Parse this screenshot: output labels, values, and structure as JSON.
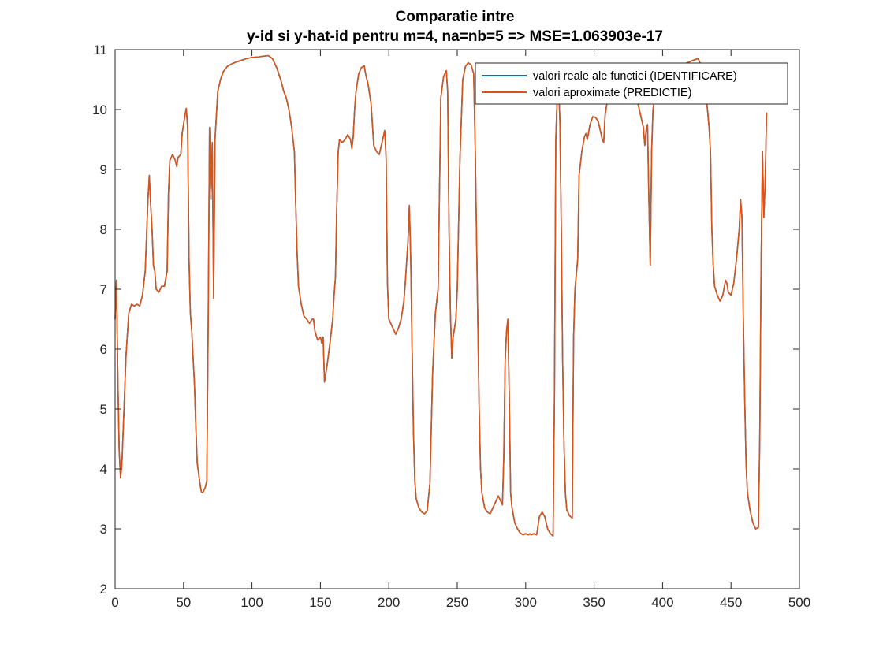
{
  "chart_data": {
    "type": "line",
    "title": [
      "Comparatie intre",
      "y-id si y-hat-id pentru m=4, na=nb=5 => MSE=1.063903e-17"
    ],
    "xlabel": "",
    "ylabel": "",
    "xlim": [
      0,
      500
    ],
    "ylim": [
      2,
      11
    ],
    "x_ticks": [
      0,
      50,
      100,
      150,
      200,
      250,
      300,
      350,
      400,
      450,
      500
    ],
    "y_ticks": [
      2,
      3,
      4,
      5,
      6,
      7,
      8,
      9,
      10,
      11
    ],
    "grid": false,
    "legend_position": "top-right",
    "series": [
      {
        "name": "valori reale ale functiei (IDENTIFICARE)",
        "color": "#0072bd",
        "points": [
          [
            0,
            6.5
          ],
          [
            1,
            7.15
          ],
          [
            2,
            5.5
          ],
          [
            3,
            4.3
          ],
          [
            4,
            3.85
          ],
          [
            5,
            4.1
          ],
          [
            6,
            4.7
          ],
          [
            8,
            5.9
          ],
          [
            10,
            6.6
          ],
          [
            12,
            6.75
          ],
          [
            14,
            6.72
          ],
          [
            16,
            6.75
          ],
          [
            18,
            6.72
          ],
          [
            20,
            6.9
          ],
          [
            22,
            7.3
          ],
          [
            23,
            7.9
          ],
          [
            24,
            8.5
          ],
          [
            25,
            8.9
          ],
          [
            26,
            8.4
          ],
          [
            27,
            8.0
          ],
          [
            28,
            7.4
          ],
          [
            29,
            7.3
          ],
          [
            30,
            7.0
          ],
          [
            32,
            6.95
          ],
          [
            34,
            7.05
          ],
          [
            36,
            7.05
          ],
          [
            38,
            7.3
          ],
          [
            39,
            8.6
          ],
          [
            40,
            9.15
          ],
          [
            42,
            9.25
          ],
          [
            44,
            9.15
          ],
          [
            45,
            9.05
          ],
          [
            46,
            9.2
          ],
          [
            48,
            9.25
          ],
          [
            49,
            9.6
          ],
          [
            51,
            9.9
          ],
          [
            52,
            10.02
          ],
          [
            53,
            9.7
          ],
          [
            54,
            7.5
          ],
          [
            55,
            6.6
          ],
          [
            56,
            6.3
          ],
          [
            58,
            5.4
          ],
          [
            59,
            4.7
          ],
          [
            60,
            4.1
          ],
          [
            62,
            3.75
          ],
          [
            63,
            3.62
          ],
          [
            64,
            3.6
          ],
          [
            66,
            3.7
          ],
          [
            67,
            3.8
          ],
          [
            68,
            6.4
          ],
          [
            69,
            9.7
          ],
          [
            70,
            8.5
          ],
          [
            71,
            9.45
          ],
          [
            72,
            6.85
          ],
          [
            73,
            9.5
          ],
          [
            75,
            10.3
          ],
          [
            77,
            10.5
          ],
          [
            79,
            10.63
          ],
          [
            82,
            10.72
          ],
          [
            85,
            10.76
          ],
          [
            88,
            10.79
          ],
          [
            92,
            10.82
          ],
          [
            96,
            10.85
          ],
          [
            100,
            10.87
          ],
          [
            105,
            10.88
          ],
          [
            108,
            10.89
          ],
          [
            112,
            10.9
          ],
          [
            115,
            10.85
          ],
          [
            118,
            10.7
          ],
          [
            121,
            10.5
          ],
          [
            123,
            10.32
          ],
          [
            125,
            10.2
          ],
          [
            127,
            10.0
          ],
          [
            129,
            9.7
          ],
          [
            131,
            9.3
          ],
          [
            132,
            8.4
          ],
          [
            133,
            7.6
          ],
          [
            134,
            7.05
          ],
          [
            136,
            6.75
          ],
          [
            138,
            6.55
          ],
          [
            140,
            6.5
          ],
          [
            142,
            6.43
          ],
          [
            144,
            6.5
          ],
          [
            145,
            6.5
          ],
          [
            146,
            6.3
          ],
          [
            148,
            6.15
          ],
          [
            150,
            6.2
          ],
          [
            151,
            6.1
          ],
          [
            152,
            6.2
          ],
          [
            153,
            5.45
          ],
          [
            155,
            5.75
          ],
          [
            157,
            6.1
          ],
          [
            159,
            6.5
          ],
          [
            160,
            6.9
          ],
          [
            161,
            7.2
          ],
          [
            162,
            8.4
          ],
          [
            163,
            9.3
          ],
          [
            164,
            9.5
          ],
          [
            166,
            9.45
          ],
          [
            168,
            9.5
          ],
          [
            170,
            9.58
          ],
          [
            172,
            9.5
          ],
          [
            173,
            9.35
          ],
          [
            174,
            9.55
          ],
          [
            175,
            10.0
          ],
          [
            176,
            10.3
          ],
          [
            178,
            10.6
          ],
          [
            180,
            10.7
          ],
          [
            182,
            10.73
          ],
          [
            183,
            10.6
          ],
          [
            185,
            10.4
          ],
          [
            187,
            10.1
          ],
          [
            189,
            9.4
          ],
          [
            191,
            9.3
          ],
          [
            193,
            9.25
          ],
          [
            195,
            9.45
          ],
          [
            197,
            9.65
          ],
          [
            198,
            9.2
          ],
          [
            199,
            7.1
          ],
          [
            200,
            6.5
          ],
          [
            202,
            6.4
          ],
          [
            204,
            6.3
          ],
          [
            205,
            6.25
          ],
          [
            207,
            6.35
          ],
          [
            209,
            6.5
          ],
          [
            211,
            6.8
          ],
          [
            212,
            7.1
          ],
          [
            214,
            7.8
          ],
          [
            215,
            8.4
          ],
          [
            216,
            7.5
          ],
          [
            217,
            6.0
          ],
          [
            218,
            4.6
          ],
          [
            219,
            3.8
          ],
          [
            220,
            3.5
          ],
          [
            222,
            3.35
          ],
          [
            224,
            3.28
          ],
          [
            226,
            3.25
          ],
          [
            228,
            3.3
          ],
          [
            230,
            3.75
          ],
          [
            232,
            5.6
          ],
          [
            234,
            6.6
          ],
          [
            236,
            7.0
          ],
          [
            238,
            10.2
          ],
          [
            240,
            10.55
          ],
          [
            242,
            10.65
          ],
          [
            243,
            10.3
          ],
          [
            244,
            8.0
          ],
          [
            245,
            6.6
          ],
          [
            246,
            5.85
          ],
          [
            247,
            6.2
          ],
          [
            249,
            6.5
          ],
          [
            250,
            7.0
          ],
          [
            252,
            9.2
          ],
          [
            254,
            10.5
          ],
          [
            256,
            10.72
          ],
          [
            258,
            10.78
          ],
          [
            260,
            10.75
          ],
          [
            262,
            10.6
          ],
          [
            263,
            9.5
          ],
          [
            265,
            6.5
          ],
          [
            266,
            5.0
          ],
          [
            267,
            4.0
          ],
          [
            268,
            3.6
          ],
          [
            270,
            3.35
          ],
          [
            272,
            3.28
          ],
          [
            274,
            3.25
          ],
          [
            276,
            3.35
          ],
          [
            278,
            3.45
          ],
          [
            280,
            3.55
          ],
          [
            281,
            3.5
          ],
          [
            282,
            3.45
          ],
          [
            283,
            3.4
          ],
          [
            284,
            4.2
          ],
          [
            285,
            5.8
          ],
          [
            286,
            6.3
          ],
          [
            287,
            6.5
          ],
          [
            288,
            5.2
          ],
          [
            289,
            3.6
          ],
          [
            290,
            3.35
          ],
          [
            292,
            3.1
          ],
          [
            294,
            3.0
          ],
          [
            296,
            2.93
          ],
          [
            298,
            2.9
          ],
          [
            300,
            2.92
          ],
          [
            302,
            2.9
          ],
          [
            303,
            2.92
          ],
          [
            304,
            2.9
          ],
          [
            306,
            2.92
          ],
          [
            308,
            2.9
          ],
          [
            310,
            3.2
          ],
          [
            312,
            3.28
          ],
          [
            314,
            3.2
          ],
          [
            316,
            3.0
          ],
          [
            318,
            2.92
          ],
          [
            320,
            2.88
          ],
          [
            321,
            5.2
          ],
          [
            322,
            9.5
          ],
          [
            323,
            10.2
          ],
          [
            324,
            10.45
          ],
          [
            325,
            9.8
          ],
          [
            326,
            8.0
          ],
          [
            327,
            5.8
          ],
          [
            328,
            4.4
          ],
          [
            329,
            3.6
          ],
          [
            330,
            3.32
          ],
          [
            332,
            3.22
          ],
          [
            334,
            3.18
          ],
          [
            335,
            6.2
          ],
          [
            336,
            7.0
          ],
          [
            338,
            7.5
          ],
          [
            339,
            8.9
          ],
          [
            341,
            9.3
          ],
          [
            343,
            9.55
          ],
          [
            344,
            9.6
          ],
          [
            345,
            9.5
          ],
          [
            347,
            9.75
          ],
          [
            349,
            9.88
          ],
          [
            351,
            9.87
          ],
          [
            353,
            9.8
          ],
          [
            355,
            9.6
          ],
          [
            356,
            9.5
          ],
          [
            357,
            9.45
          ],
          [
            358,
            9.9
          ],
          [
            359,
            10.05
          ],
          [
            361,
            10.3
          ],
          [
            363,
            10.45
          ],
          [
            365,
            10.55
          ],
          [
            367,
            10.6
          ],
          [
            370,
            10.55
          ],
          [
            374,
            10.45
          ],
          [
            377,
            10.3
          ],
          [
            380,
            10.2
          ],
          [
            382,
            10.1
          ],
          [
            384,
            9.9
          ],
          [
            386,
            9.7
          ],
          [
            387,
            9.4
          ],
          [
            388,
            9.65
          ],
          [
            389,
            9.75
          ],
          [
            390,
            8.5
          ],
          [
            391,
            7.4
          ],
          [
            392,
            9.3
          ],
          [
            393,
            10.0
          ],
          [
            395,
            10.3
          ],
          [
            397,
            10.45
          ],
          [
            400,
            10.55
          ],
          [
            403,
            10.6
          ],
          [
            406,
            10.65
          ],
          [
            410,
            10.7
          ],
          [
            414,
            10.75
          ],
          [
            418,
            10.78
          ],
          [
            422,
            10.82
          ],
          [
            426,
            10.85
          ],
          [
            429,
            10.7
          ],
          [
            430,
            10.5
          ],
          [
            432,
            10.2
          ],
          [
            434,
            9.7
          ],
          [
            435,
            9.3
          ],
          [
            436,
            8.0
          ],
          [
            437,
            7.4
          ],
          [
            438,
            7.05
          ],
          [
            440,
            6.9
          ],
          [
            442,
            6.8
          ],
          [
            444,
            6.9
          ],
          [
            446,
            7.15
          ],
          [
            447,
            7.1
          ],
          [
            448,
            6.95
          ],
          [
            450,
            6.9
          ],
          [
            452,
            7.1
          ],
          [
            454,
            7.5
          ],
          [
            456,
            8.0
          ],
          [
            457,
            8.5
          ],
          [
            458,
            8.2
          ],
          [
            459,
            6.5
          ],
          [
            460,
            5.2
          ],
          [
            461,
            4.1
          ],
          [
            462,
            3.6
          ],
          [
            464,
            3.3
          ],
          [
            466,
            3.1
          ],
          [
            468,
            3.0
          ],
          [
            470,
            3.02
          ],
          [
            471,
            4.5
          ],
          [
            472,
            7.4
          ],
          [
            473,
            9.3
          ],
          [
            474,
            8.2
          ],
          [
            475,
            8.8
          ],
          [
            476,
            9.95
          ]
        ]
      },
      {
        "name": "valori aproximate (PREDICTIE)",
        "color": "#d95319",
        "same_as_series": 0
      }
    ]
  },
  "legend": {
    "items": [
      {
        "label": "valori reale ale functiei (IDENTIFICARE)",
        "color": "#0072bd"
      },
      {
        "label": "valori aproximate (PREDICTIE)",
        "color": "#d95319"
      }
    ]
  }
}
